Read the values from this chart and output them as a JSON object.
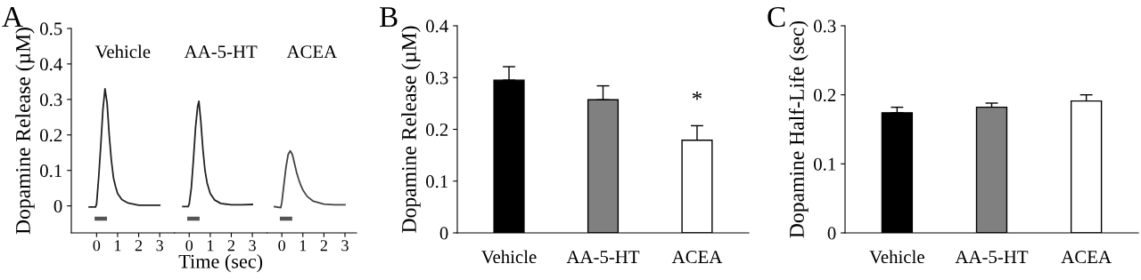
{
  "chart_data": [
    {
      "type": "line",
      "title": "Vehicle",
      "ylabel": "Dopamine Release (µM)",
      "annotations": [
        "A"
      ],
      "xlim": [
        -1.2,
        3.7
      ],
      "xticks": [
        0,
        1,
        2,
        3
      ],
      "ylim": [
        -0.076,
        0.5
      ],
      "yticks": [
        0,
        0.1,
        0.2,
        0.3,
        0.4,
        0.5
      ],
      "grid": false,
      "series": [
        {
          "color": "#222222",
          "x": [
            -0.35,
            -0.05,
            0,
            0.1,
            0.2,
            0.3,
            0.4,
            0.5,
            0.6,
            0.7,
            0.8,
            0.9,
            1.0,
            1.2,
            1.5,
            2,
            2.5,
            3
          ],
          "values": [
            -0.003,
            -0.003,
            0.005,
            0.08,
            0.17,
            0.27,
            0.33,
            0.29,
            0.2,
            0.13,
            0.08,
            0.055,
            0.035,
            0.018,
            0.008,
            0.002,
            0.002,
            0.002
          ]
        },
        {
          "color": "#555555",
          "x": [
            0,
            0.4
          ],
          "values": [
            -0.036,
            -0.036
          ]
        }
      ]
    },
    {
      "type": "line",
      "title": "AA-5-HT",
      "xlabel": "Time (sec)",
      "tick_labels": "x",
      "xlim": [
        -0.7,
        3.7
      ],
      "xticks": [
        0,
        1,
        2,
        3
      ],
      "ylim": [
        -0.076,
        0.5
      ],
      "grid": false,
      "series": [
        {
          "color": "#222222",
          "x": [
            -0.3,
            -0.05,
            0,
            0.1,
            0.2,
            0.3,
            0.4,
            0.46,
            0.55,
            0.65,
            0.75,
            0.85,
            1.0,
            1.2,
            1.5,
            2,
            2.5,
            3
          ],
          "values": [
            -0.002,
            -0.002,
            0.005,
            0.05,
            0.13,
            0.22,
            0.28,
            0.295,
            0.24,
            0.16,
            0.1,
            0.065,
            0.035,
            0.017,
            0.007,
            0.003,
            0.003,
            0.004
          ]
        },
        {
          "color": "#555555",
          "x": [
            0,
            0.4
          ],
          "values": [
            -0.036,
            -0.036
          ]
        }
      ]
    },
    {
      "type": "line",
      "title": "ACEA",
      "tick_labels": "x",
      "xlim": [
        -0.7,
        3.55
      ],
      "xticks": [
        0,
        1,
        2,
        3
      ],
      "ylim": [
        -0.076,
        0.5
      ],
      "grid": false,
      "series": [
        {
          "color": "#444444",
          "x": [
            -0.35,
            -0.05,
            0,
            0.1,
            0.2,
            0.3,
            0.4,
            0.5,
            0.6,
            0.7,
            0.8,
            0.9,
            1.0,
            1.2,
            1.5,
            2,
            2.5,
            3
          ],
          "values": [
            -0.002,
            -0.005,
            0.01,
            0.06,
            0.11,
            0.145,
            0.155,
            0.145,
            0.12,
            0.095,
            0.075,
            0.058,
            0.045,
            0.027,
            0.013,
            0.005,
            0.003,
            0.003
          ]
        },
        {
          "color": "#555555",
          "x": [
            0,
            0.4
          ],
          "values": [
            -0.036,
            -0.036
          ]
        }
      ]
    },
    {
      "type": "bar",
      "ylabel": "Dopamine Release (µM)",
      "annotations": [
        "B",
        "*"
      ],
      "categories": [
        "Vehicle",
        "AA-5-HT",
        "ACEA"
      ],
      "values": [
        0.295,
        0.257,
        0.179
      ],
      "errors": [
        0.026,
        0.027,
        0.028
      ],
      "colors": [
        "#000000",
        "#808080",
        "#ffffff"
      ],
      "ylim": [
        0,
        0.4
      ],
      "yticks": [
        0,
        0.1,
        0.2,
        0.3,
        0.4
      ],
      "grid": false
    },
    {
      "type": "bar",
      "ylabel": "Dopamine Half-Life (sec)",
      "annotations": [
        "C"
      ],
      "categories": [
        "Vehicle",
        "AA-5-HT",
        "ACEA"
      ],
      "values": [
        0.174,
        0.182,
        0.191
      ],
      "errors": [
        0.008,
        0.006,
        0.009
      ],
      "colors": [
        "#000000",
        "#808080",
        "#ffffff"
      ],
      "ylim": [
        0,
        0.3
      ],
      "yticks": [
        0,
        0.1,
        0.2,
        0.3
      ],
      "grid": false
    }
  ]
}
